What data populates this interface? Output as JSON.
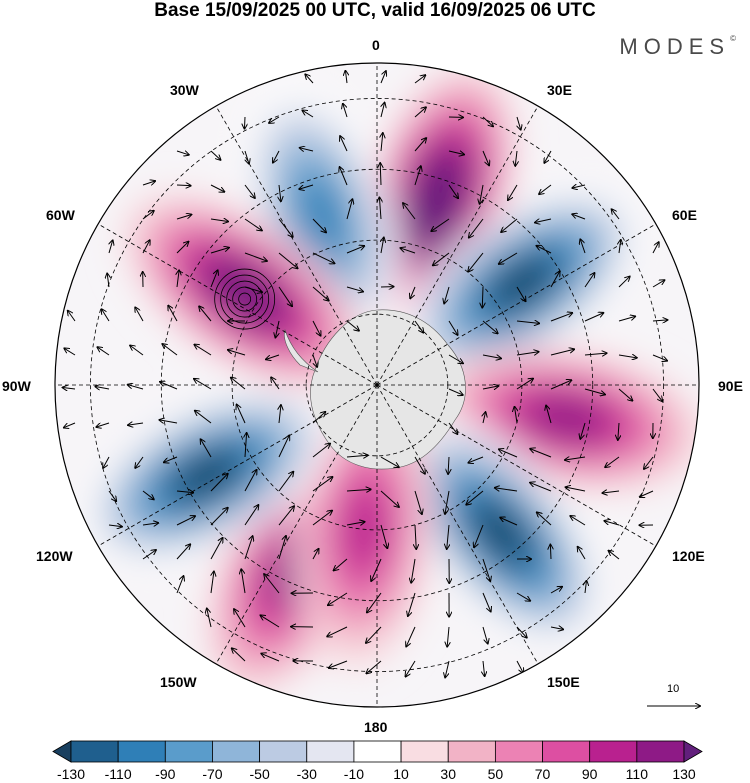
{
  "title": "Base 15/09/2025 00 UTC, valid 16/09/2025 06 UTC",
  "logo": "MODES",
  "logo_mark": "©",
  "longitude_labels": {
    "lon_0": "0",
    "lon_30e": "30E",
    "lon_60e": "60E",
    "lon_90e": "90E",
    "lon_120e": "120E",
    "lon_150e": "150E",
    "lon_180": "180",
    "lon_150w": "150W",
    "lon_120w": "120W",
    "lon_90w": "90W",
    "lon_60w": "60W",
    "lon_30w": "30W"
  },
  "reference_vector_label": "10",
  "colorbar": {
    "ticks": [
      "-130",
      "-110",
      "-90",
      "-70",
      "-50",
      "-30",
      "-10",
      "10",
      "30",
      "50",
      "70",
      "90",
      "110",
      "130"
    ],
    "colors": [
      "#183f5f",
      "#1f5f8e",
      "#2f7fb7",
      "#5a9ccb",
      "#8fb5d9",
      "#bccbe3",
      "#e4e6f1",
      "#ffffff",
      "#f9dde2",
      "#f2b3c6",
      "#ec82b4",
      "#dd4fa2",
      "#b9218f",
      "#8e1a86",
      "#621f7c"
    ]
  },
  "anomalies": [
    {
      "name": "positive-anomaly-atlantic-east",
      "angle": 18,
      "r": 0.6,
      "value": 130
    },
    {
      "name": "negative-anomaly-atlantic-west",
      "angle": -18,
      "r": 0.55,
      "value": -90
    },
    {
      "name": "negative-anomaly-indian-west",
      "angle": 55,
      "r": 0.55,
      "value": -130
    },
    {
      "name": "positive-anomaly-indian-east",
      "angle": 100,
      "r": 0.6,
      "value": 90
    },
    {
      "name": "negative-anomaly-south-australia",
      "angle": 140,
      "r": 0.6,
      "value": -130
    },
    {
      "name": "positive-anomaly-pacific-west",
      "angle": -155,
      "r": 0.62,
      "value": 90
    },
    {
      "name": "positive-anomaly-pacific-central",
      "angle": -175,
      "r": 0.45,
      "value": 70
    },
    {
      "name": "negative-anomaly-pacific-east",
      "angle": -118,
      "r": 0.6,
      "value": -130
    },
    {
      "name": "positive-anomaly-south-america",
      "angle": -55,
      "r": 0.5,
      "value": 110
    }
  ],
  "cyclones": [
    {
      "name": "cyclone-drake-passage",
      "angle": -57,
      "r": 0.49
    }
  ]
}
